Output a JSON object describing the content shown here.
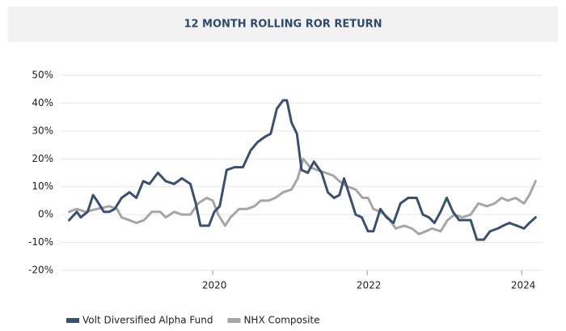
{
  "chart_data": {
    "type": "line",
    "title": "12 MONTH ROLLING ROR RETURN",
    "xlim": [
      2018.03,
      2024.26
    ],
    "xticks": [
      2020,
      2022,
      2024
    ],
    "ylim": [
      -20,
      50
    ],
    "yticks": [
      {
        "value": -20,
        "label": "-20%"
      },
      {
        "value": -10,
        "label": "-10%"
      },
      {
        "value": 0,
        "label": "0%"
      },
      {
        "value": 10,
        "label": "10%"
      },
      {
        "value": 20,
        "label": "20%"
      },
      {
        "value": 30,
        "label": "30%"
      },
      {
        "value": 40,
        "label": "40%"
      },
      {
        "value": 50,
        "label": "50%"
      }
    ],
    "grid": true,
    "legend": "bottom",
    "series": [
      {
        "name": "Volt Diversified Alpha Fund",
        "color": "#3a5070",
        "x": [
          2018.14,
          2018.24,
          2018.29,
          2018.38,
          2018.45,
          2018.5,
          2018.59,
          2018.66,
          2018.73,
          2018.82,
          2018.92,
          2019.01,
          2019.1,
          2019.18,
          2019.29,
          2019.39,
          2019.5,
          2019.6,
          2019.71,
          2019.78,
          2019.84,
          2019.95,
          2020.02,
          2020.09,
          2020.18,
          2020.28,
          2020.39,
          2020.49,
          2020.58,
          2020.68,
          2020.75,
          2020.83,
          2020.91,
          2020.96,
          2021.02,
          2021.09,
          2021.15,
          2021.23,
          2021.31,
          2021.41,
          2021.49,
          2021.57,
          2021.64,
          2021.7,
          2021.77,
          2021.85,
          2021.93,
          2022.01,
          2022.08,
          2022.17,
          2022.25,
          2022.34,
          2022.43,
          2022.53,
          2022.64,
          2022.72,
          2022.8,
          2022.87,
          2022.95,
          2023.03,
          2023.11,
          2023.19,
          2023.27,
          2023.34,
          2023.42,
          2023.51,
          2023.59,
          2023.69,
          2023.76,
          2023.84,
          2023.94,
          2024.03,
          2024.1,
          2024.18
        ],
        "values": [
          -2,
          1,
          -1,
          1,
          7,
          5,
          1,
          1,
          2,
          6,
          8,
          6,
          12,
          11,
          15,
          12,
          11,
          13,
          11,
          4,
          -4,
          -4,
          1,
          3,
          16,
          17,
          17,
          23,
          26,
          28,
          29,
          38,
          41,
          41,
          33,
          29,
          16,
          15,
          19,
          15,
          8,
          6,
          7,
          13,
          7,
          0,
          -1,
          -6,
          -6,
          2,
          -1,
          -3,
          4,
          6,
          6,
          0,
          -1,
          -3,
          1,
          6,
          1,
          -2,
          -2,
          -2,
          -9,
          -9,
          -6,
          -5,
          -4,
          -3,
          -4,
          -5,
          -3,
          -1
        ]
      },
      {
        "name": "NHX Composite",
        "color": "#a6a6a6",
        "x": [
          2018.14,
          2018.24,
          2018.35,
          2018.5,
          2018.66,
          2018.76,
          2018.82,
          2018.92,
          2019.01,
          2019.11,
          2019.21,
          2019.32,
          2019.39,
          2019.5,
          2019.6,
          2019.71,
          2019.81,
          2019.92,
          2020.0,
          2020.07,
          2020.16,
          2020.23,
          2020.34,
          2020.44,
          2020.54,
          2020.62,
          2020.72,
          2020.81,
          2020.91,
          2021.02,
          2021.1,
          2021.17,
          2021.26,
          2021.35,
          2021.46,
          2021.56,
          2021.64,
          2021.75,
          2021.85,
          2021.94,
          2022.01,
          2022.08,
          2022.17,
          2022.27,
          2022.37,
          2022.48,
          2022.58,
          2022.67,
          2022.76,
          2022.84,
          2022.95,
          2023.04,
          2023.13,
          2023.23,
          2023.34,
          2023.44,
          2023.55,
          2023.65,
          2023.74,
          2023.82,
          2023.92,
          2024.03,
          2024.1,
          2024.18
        ],
        "values": [
          1,
          2,
          1,
          2,
          3,
          2,
          -1,
          -2,
          -3,
          -2,
          1,
          1,
          -1,
          1,
          0,
          0,
          4,
          6,
          5,
          0,
          -4,
          -1,
          2,
          2,
          3,
          5,
          5,
          6,
          8,
          9,
          13,
          20,
          17,
          16,
          15,
          14,
          12,
          10,
          9,
          6,
          6,
          2,
          1,
          -1,
          -5,
          -4,
          -5,
          -7,
          -6,
          -5,
          -6,
          -2,
          0,
          -1,
          0,
          4,
          3,
          4,
          6,
          5,
          6,
          4,
          7,
          12
        ]
      }
    ]
  }
}
